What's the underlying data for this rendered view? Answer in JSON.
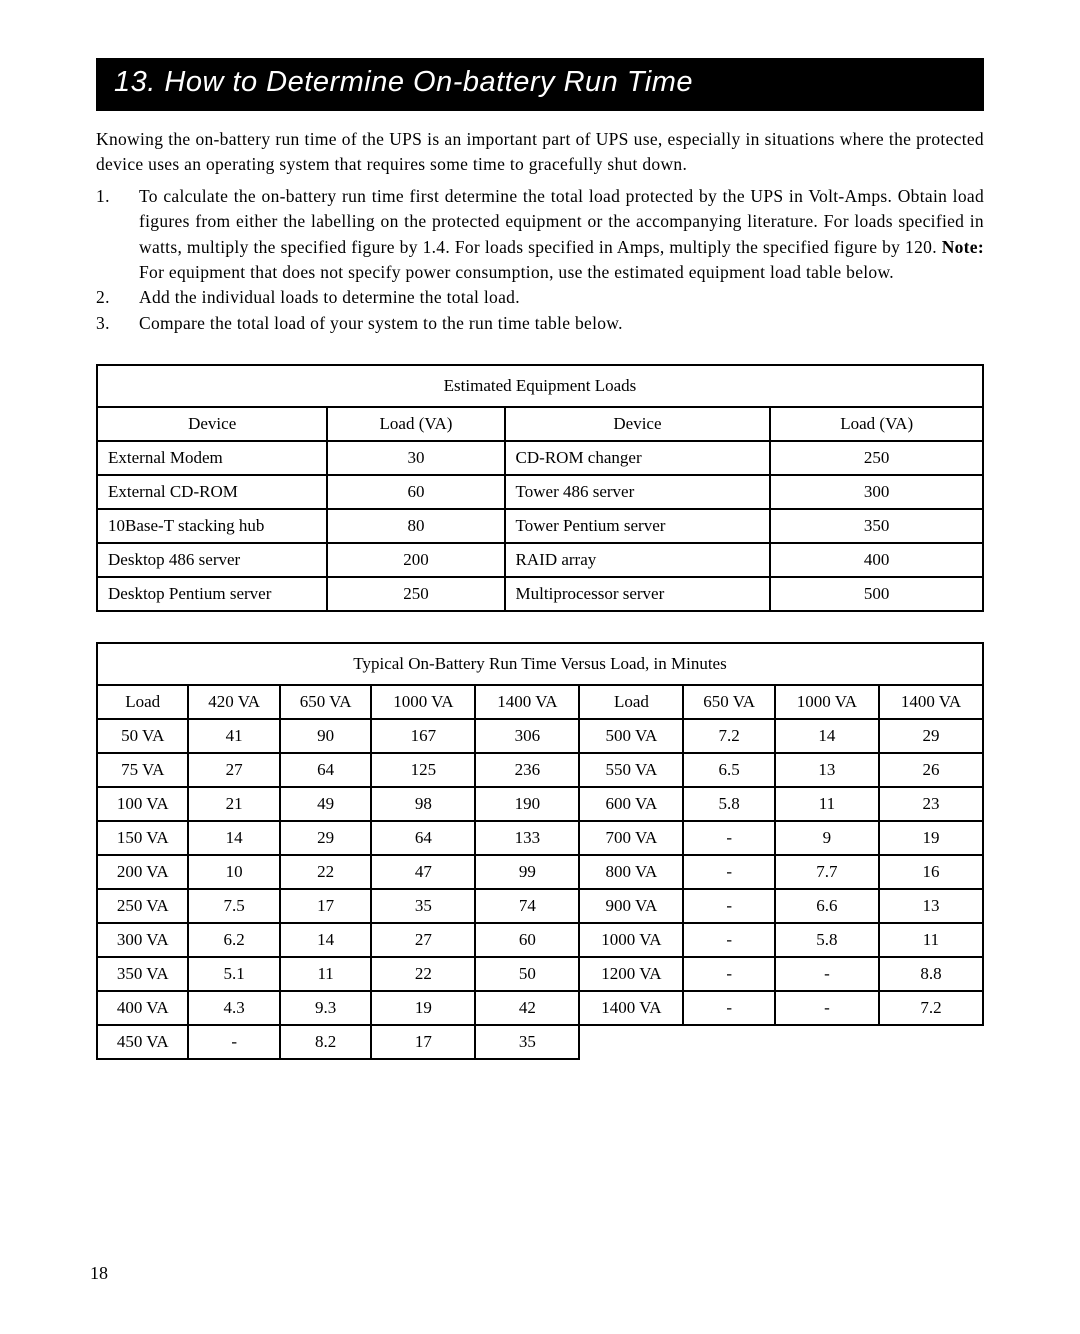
{
  "section_title": "13. How to Determine On-battery Run Time",
  "intro": "Knowing the on-battery run time of the UPS is an important part of UPS use, especially in situations where the protected device uses an operating system that requires some time to gracefully shut down.",
  "steps": [
    {
      "pre": "To calculate the on-battery run time first determine the total load protected by the UPS in Volt-Amps. Obtain load figures from either the labelling on the protected equipment or the accompanying literature. For loads specified in watts, multiply the specified figure by 1.4. For loads specified in Amps, multiply the specified figure by 120. ",
      "note_label": "Note:",
      "post": " For equipment that does not specify power consumption, use the estimated equipment load table below."
    },
    {
      "pre": "Add the individual loads to determine the total load.",
      "note_label": "",
      "post": ""
    },
    {
      "pre": "Compare the total load of your system to the run time table below.",
      "note_label": "",
      "post": ""
    }
  ],
  "equip_table": {
    "caption": "Estimated Equipment Loads",
    "headers": [
      "Device",
      "Load (VA)",
      "Device",
      "Load (VA)"
    ],
    "col_widths": [
      "26%",
      "20%",
      "30%",
      "24%"
    ],
    "rows": [
      [
        "External Modem",
        "30",
        "CD-ROM changer",
        "250"
      ],
      [
        "External CD-ROM",
        "60",
        "Tower 486 server",
        "300"
      ],
      [
        "10Base-T stacking hub",
        "80",
        "Tower Pentium server",
        "350"
      ],
      [
        "Desktop 486 server",
        "200",
        "RAID array",
        "400"
      ],
      [
        "Desktop Pentium server",
        "250",
        "Multiprocessor server",
        "500"
      ]
    ]
  },
  "runtime_table": {
    "caption": "Typical On-Battery Run Time Versus Load, in Minutes",
    "headers": [
      "Load",
      "420 VA",
      "650 VA",
      "1000 VA",
      "1400 VA",
      "Load",
      "650 VA",
      "1000 VA",
      "1400 VA"
    ],
    "rows": [
      [
        "50 VA",
        "41",
        "90",
        "167",
        "306",
        "500 VA",
        "7.2",
        "14",
        "29"
      ],
      [
        "75 VA",
        "27",
        "64",
        "125",
        "236",
        "550 VA",
        "6.5",
        "13",
        "26"
      ],
      [
        "100 VA",
        "21",
        "49",
        "98",
        "190",
        "600 VA",
        "5.8",
        "11",
        "23"
      ],
      [
        "150 VA",
        "14",
        "29",
        "64",
        "133",
        "700 VA",
        "-",
        "9",
        "19"
      ],
      [
        "200 VA",
        "10",
        "22",
        "47",
        "99",
        "800 VA",
        "-",
        "7.7",
        "16"
      ],
      [
        "250 VA",
        "7.5",
        "17",
        "35",
        "74",
        "900 VA",
        "-",
        "6.6",
        "13"
      ],
      [
        "300 VA",
        "6.2",
        "14",
        "27",
        "60",
        "1000 VA",
        "-",
        "5.8",
        "11"
      ],
      [
        "350 VA",
        "5.1",
        "11",
        "22",
        "50",
        "1200 VA",
        "-",
        "-",
        "8.8"
      ],
      [
        "400 VA",
        "4.3",
        "9.3",
        "19",
        "42",
        "1400 VA",
        "-",
        "-",
        "7.2"
      ],
      [
        "450 VA",
        "-",
        "8.2",
        "17",
        "35",
        "",
        "",
        "",
        ""
      ]
    ]
  },
  "page_number": "18"
}
